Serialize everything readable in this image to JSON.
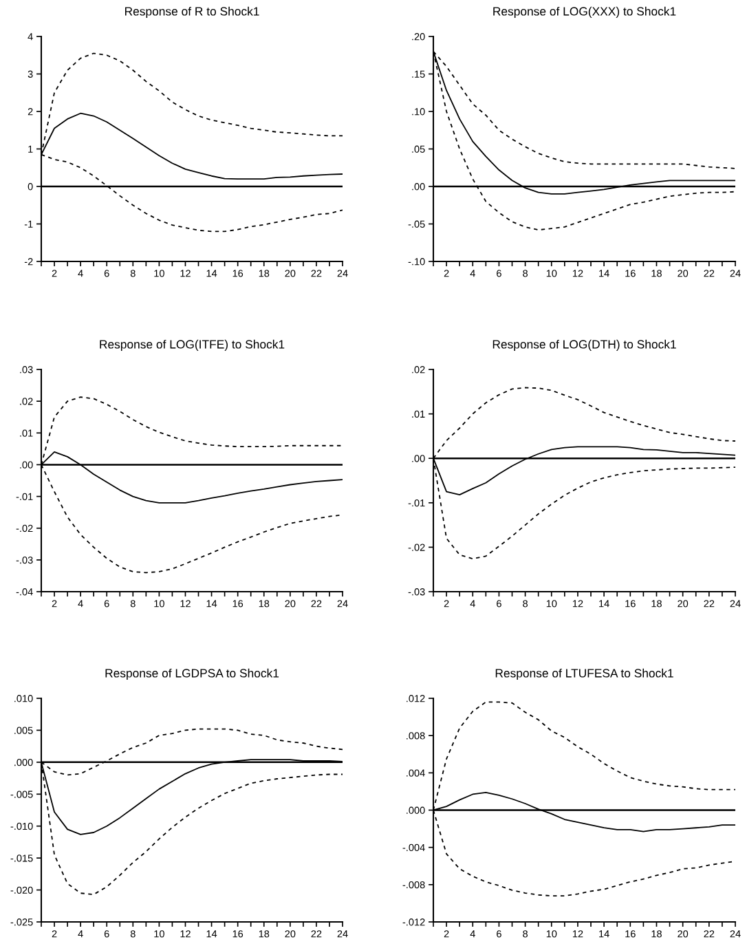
{
  "chart_data": [
    {
      "type": "line",
      "title": "Response of R to Shock1",
      "x": [
        1,
        2,
        3,
        4,
        5,
        6,
        7,
        8,
        9,
        10,
        11,
        12,
        13,
        14,
        15,
        16,
        17,
        18,
        19,
        20,
        21,
        22,
        23,
        24
      ],
      "xlim": [
        1,
        24
      ],
      "xticks": [
        {
          "value": 1,
          "label": null
        },
        2,
        {
          "value": 3,
          "label": null
        },
        4,
        {
          "value": 5,
          "label": null
        },
        6,
        {
          "value": 7,
          "label": null
        },
        8,
        {
          "value": 9,
          "label": null
        },
        10,
        {
          "value": 11,
          "label": null
        },
        12,
        {
          "value": 13,
          "label": null
        },
        14,
        {
          "value": 15,
          "label": null
        },
        16,
        {
          "value": 17,
          "label": null
        },
        18,
        {
          "value": 19,
          "label": null
        },
        20,
        {
          "value": 21,
          "label": null
        },
        22,
        {
          "value": 23,
          "label": null
        },
        24
      ],
      "ylim": [
        -2,
        4
      ],
      "yticks": [
        -2,
        -1,
        0,
        1,
        2,
        3,
        4
      ],
      "ref_lines": [
        {
          "axis": "y",
          "value": 0,
          "color": "#000000"
        }
      ],
      "series": [
        {
          "color": "#000000",
          "line_style": "solid",
          "values": [
            0.85,
            1.55,
            1.8,
            1.95,
            1.88,
            1.72,
            1.5,
            1.28,
            1.05,
            0.82,
            0.62,
            0.46,
            0.37,
            0.28,
            0.21,
            0.2,
            0.2,
            0.2,
            0.24,
            0.25,
            0.28,
            0.3,
            0.32,
            0.33
          ]
        },
        {
          "color": "#000000",
          "line_style": "dashed",
          "values": [
            0.85,
            2.5,
            3.1,
            3.42,
            3.55,
            3.5,
            3.35,
            3.1,
            2.8,
            2.55,
            2.25,
            2.05,
            1.88,
            1.77,
            1.7,
            1.63,
            1.55,
            1.5,
            1.45,
            1.43,
            1.4,
            1.37,
            1.35,
            1.35
          ]
        },
        {
          "color": "#000000",
          "line_style": "dashed",
          "values": [
            0.85,
            0.72,
            0.65,
            0.5,
            0.28,
            0.02,
            -0.25,
            -0.5,
            -0.72,
            -0.9,
            -1.03,
            -1.1,
            -1.17,
            -1.2,
            -1.2,
            -1.15,
            -1.07,
            -1.02,
            -0.95,
            -0.88,
            -0.82,
            -0.75,
            -0.72,
            -0.63
          ]
        }
      ]
    },
    {
      "type": "line",
      "title": "Response of LOG(XXX) to Shock1",
      "x": [
        1,
        2,
        3,
        4,
        5,
        6,
        7,
        8,
        9,
        10,
        11,
        12,
        13,
        14,
        15,
        16,
        17,
        18,
        19,
        20,
        21,
        22,
        23,
        24
      ],
      "xlim": [
        1,
        24
      ],
      "xticks": [
        {
          "value": 1,
          "label": null
        },
        2,
        {
          "value": 3,
          "label": null
        },
        4,
        {
          "value": 5,
          "label": null
        },
        6,
        {
          "value": 7,
          "label": null
        },
        8,
        {
          "value": 9,
          "label": null
        },
        10,
        {
          "value": 11,
          "label": null
        },
        12,
        {
          "value": 13,
          "label": null
        },
        14,
        {
          "value": 15,
          "label": null
        },
        16,
        {
          "value": 17,
          "label": null
        },
        18,
        {
          "value": 19,
          "label": null
        },
        20,
        {
          "value": 21,
          "label": null
        },
        22,
        {
          "value": 23,
          "label": null
        },
        24
      ],
      "ylim": [
        -0.1,
        0.2
      ],
      "yticks": [
        {
          "value": -0.1,
          "label": "-.10"
        },
        {
          "value": -0.05,
          "label": "-.05"
        },
        {
          "value": 0,
          "label": ".00"
        },
        {
          "value": 0.05,
          "label": ".05"
        },
        {
          "value": 0.1,
          "label": ".10"
        },
        {
          "value": 0.15,
          "label": ".15"
        },
        {
          "value": 0.2,
          "label": ".20"
        }
      ],
      "ref_lines": [
        {
          "axis": "y",
          "value": 0,
          "color": "#000000"
        }
      ],
      "series": [
        {
          "color": "#000000",
          "line_style": "solid",
          "values": [
            0.18,
            0.128,
            0.09,
            0.06,
            0.04,
            0.022,
            0.008,
            -0.002,
            -0.008,
            -0.01,
            -0.01,
            -0.008,
            -0.006,
            -0.004,
            -0.001,
            0.002,
            0.004,
            0.006,
            0.008,
            0.008,
            0.008,
            0.008,
            0.008,
            0.008
          ]
        },
        {
          "color": "#000000",
          "line_style": "dashed",
          "values": [
            0.18,
            0.16,
            0.135,
            0.11,
            0.095,
            0.075,
            0.063,
            0.053,
            0.044,
            0.038,
            0.033,
            0.031,
            0.03,
            0.03,
            0.03,
            0.03,
            0.03,
            0.03,
            0.03,
            0.03,
            0.028,
            0.026,
            0.025,
            0.024
          ]
        },
        {
          "color": "#000000",
          "line_style": "dashed",
          "values": [
            0.18,
            0.1,
            0.05,
            0.01,
            -0.02,
            -0.035,
            -0.047,
            -0.054,
            -0.058,
            -0.056,
            -0.054,
            -0.048,
            -0.042,
            -0.036,
            -0.03,
            -0.024,
            -0.021,
            -0.017,
            -0.013,
            -0.011,
            -0.009,
            -0.008,
            -0.008,
            -0.007
          ]
        }
      ]
    },
    {
      "type": "line",
      "title": "Response of LOG(ITFE) to Shock1",
      "x": [
        1,
        2,
        3,
        4,
        5,
        6,
        7,
        8,
        9,
        10,
        11,
        12,
        13,
        14,
        15,
        16,
        17,
        18,
        19,
        20,
        21,
        22,
        23,
        24
      ],
      "xlim": [
        1,
        24
      ],
      "xticks": [
        {
          "value": 1,
          "label": null
        },
        2,
        {
          "value": 3,
          "label": null
        },
        4,
        {
          "value": 5,
          "label": null
        },
        6,
        {
          "value": 7,
          "label": null
        },
        8,
        {
          "value": 9,
          "label": null
        },
        10,
        {
          "value": 11,
          "label": null
        },
        12,
        {
          "value": 13,
          "label": null
        },
        14,
        {
          "value": 15,
          "label": null
        },
        16,
        {
          "value": 17,
          "label": null
        },
        18,
        {
          "value": 19,
          "label": null
        },
        20,
        {
          "value": 21,
          "label": null
        },
        22,
        {
          "value": 23,
          "label": null
        },
        24
      ],
      "ylim": [
        -0.04,
        0.03
      ],
      "yticks": [
        {
          "value": -0.04,
          "label": "-.04"
        },
        {
          "value": -0.03,
          "label": "-.03"
        },
        {
          "value": -0.02,
          "label": "-.02"
        },
        {
          "value": -0.01,
          "label": "-.01"
        },
        {
          "value": 0,
          "label": ".00"
        },
        {
          "value": 0.01,
          "label": ".01"
        },
        {
          "value": 0.02,
          "label": ".02"
        },
        {
          "value": 0.03,
          "label": ".03"
        }
      ],
      "ref_lines": [
        {
          "axis": "y",
          "value": 0,
          "color": "#000000"
        }
      ],
      "series": [
        {
          "color": "#000000",
          "line_style": "solid",
          "values": [
            0,
            0.004,
            0.0025,
            0,
            -0.003,
            -0.0055,
            -0.008,
            -0.01,
            -0.0113,
            -0.012,
            -0.012,
            -0.012,
            -0.0113,
            -0.0105,
            -0.0098,
            -0.009,
            -0.0083,
            -0.0077,
            -0.007,
            -0.0063,
            -0.0058,
            -0.0053,
            -0.005,
            -0.0047
          ]
        },
        {
          "color": "#000000",
          "line_style": "dashed",
          "values": [
            0,
            0.015,
            0.02,
            0.0213,
            0.0208,
            0.019,
            0.0168,
            0.0142,
            0.012,
            0.0102,
            0.0088,
            0.0075,
            0.0068,
            0.0062,
            0.0059,
            0.0057,
            0.0057,
            0.0057,
            0.0058,
            0.006,
            0.006,
            0.006,
            0.006,
            0.006
          ]
        },
        {
          "color": "#000000",
          "line_style": "dashed",
          "values": [
            0,
            -0.0085,
            -0.0165,
            -0.022,
            -0.026,
            -0.0295,
            -0.0322,
            -0.0337,
            -0.034,
            -0.0337,
            -0.0328,
            -0.0312,
            -0.0295,
            -0.0278,
            -0.026,
            -0.0243,
            -0.0228,
            -0.0212,
            -0.0198,
            -0.0185,
            -0.0177,
            -0.017,
            -0.0163,
            -0.0158
          ]
        }
      ]
    },
    {
      "type": "line",
      "title": "Response of LOG(DTH) to Shock1",
      "x": [
        1,
        2,
        3,
        4,
        5,
        6,
        7,
        8,
        9,
        10,
        11,
        12,
        13,
        14,
        15,
        16,
        17,
        18,
        19,
        20,
        21,
        22,
        23,
        24
      ],
      "xlim": [
        1,
        24
      ],
      "xticks": [
        {
          "value": 1,
          "label": null
        },
        2,
        {
          "value": 3,
          "label": null
        },
        4,
        {
          "value": 5,
          "label": null
        },
        6,
        {
          "value": 7,
          "label": null
        },
        8,
        {
          "value": 9,
          "label": null
        },
        10,
        {
          "value": 11,
          "label": null
        },
        12,
        {
          "value": 13,
          "label": null
        },
        14,
        {
          "value": 15,
          "label": null
        },
        16,
        {
          "value": 17,
          "label": null
        },
        18,
        {
          "value": 19,
          "label": null
        },
        20,
        {
          "value": 21,
          "label": null
        },
        22,
        {
          "value": 23,
          "label": null
        },
        24
      ],
      "ylim": [
        -0.03,
        0.02
      ],
      "yticks": [
        {
          "value": -0.03,
          "label": "-.03"
        },
        {
          "value": -0.02,
          "label": "-.02"
        },
        {
          "value": -0.01,
          "label": "-.01"
        },
        {
          "value": 0,
          "label": ".00"
        },
        {
          "value": 0.01,
          "label": ".01"
        },
        {
          "value": 0.02,
          "label": ".02"
        }
      ],
      "ref_lines": [
        {
          "axis": "y",
          "value": 0,
          "color": "#000000"
        }
      ],
      "series": [
        {
          "color": "#000000",
          "line_style": "solid",
          "values": [
            0,
            -0.0075,
            -0.0082,
            -0.0068,
            -0.0055,
            -0.0035,
            -0.0017,
            -0.0002,
            0.001,
            0.002,
            0.0024,
            0.0026,
            0.0026,
            0.0026,
            0.0026,
            0.0024,
            0.002,
            0.0019,
            0.0016,
            0.0013,
            0.0013,
            0.0011,
            0.0009,
            0.0007
          ]
        },
        {
          "color": "#000000",
          "line_style": "dashed",
          "values": [
            0,
            0.004,
            0.0068,
            0.01,
            0.0125,
            0.0143,
            0.0156,
            0.0159,
            0.0158,
            0.0153,
            0.0142,
            0.0132,
            0.0118,
            0.0103,
            0.0093,
            0.0083,
            0.0074,
            0.0066,
            0.0058,
            0.0054,
            0.0049,
            0.0044,
            0.004,
            0.0039
          ]
        },
        {
          "color": "#000000",
          "line_style": "dashed",
          "values": [
            0,
            -0.018,
            -0.0217,
            -0.0226,
            -0.022,
            -0.0198,
            -0.0175,
            -0.015,
            -0.0125,
            -0.0103,
            -0.0083,
            -0.0067,
            -0.0053,
            -0.0044,
            -0.0037,
            -0.0032,
            -0.0028,
            -0.0026,
            -0.0024,
            -0.0023,
            -0.0022,
            -0.0022,
            -0.0021,
            -0.002
          ]
        }
      ]
    },
    {
      "type": "line",
      "title": "Response of LGDPSA to Shock1",
      "x": [
        1,
        2,
        3,
        4,
        5,
        6,
        7,
        8,
        9,
        10,
        11,
        12,
        13,
        14,
        15,
        16,
        17,
        18,
        19,
        20,
        21,
        22,
        23,
        24
      ],
      "xlim": [
        1,
        24
      ],
      "xticks": [
        {
          "value": 1,
          "label": null
        },
        2,
        {
          "value": 3,
          "label": null
        },
        4,
        {
          "value": 5,
          "label": null
        },
        6,
        {
          "value": 7,
          "label": null
        },
        8,
        {
          "value": 9,
          "label": null
        },
        10,
        {
          "value": 11,
          "label": null
        },
        12,
        {
          "value": 13,
          "label": null
        },
        14,
        {
          "value": 15,
          "label": null
        },
        16,
        {
          "value": 17,
          "label": null
        },
        18,
        {
          "value": 19,
          "label": null
        },
        20,
        {
          "value": 21,
          "label": null
        },
        22,
        {
          "value": 23,
          "label": null
        },
        24
      ],
      "ylim": [
        -0.025,
        0.01
      ],
      "yticks": [
        {
          "value": -0.025,
          "label": "-.025"
        },
        {
          "value": -0.02,
          "label": "-.020"
        },
        {
          "value": -0.015,
          "label": "-.015"
        },
        {
          "value": -0.01,
          "label": "-.010"
        },
        {
          "value": -0.005,
          "label": "-.005"
        },
        {
          "value": 0,
          "label": ".000"
        },
        {
          "value": 0.005,
          "label": ".005"
        },
        {
          "value": 0.01,
          "label": ".010"
        }
      ],
      "ref_lines": [
        {
          "axis": "y",
          "value": 0,
          "color": "#000000"
        }
      ],
      "series": [
        {
          "color": "#000000",
          "line_style": "solid",
          "values": [
            0,
            -0.0078,
            -0.0105,
            -0.0113,
            -0.011,
            -0.01,
            -0.0087,
            -0.0072,
            -0.0057,
            -0.0042,
            -0.003,
            -0.0018,
            -0.0009,
            -0.0003,
            0,
            0.0002,
            0.0004,
            0.0004,
            0.0004,
            0.0004,
            0.0002,
            0.0002,
            0.0002,
            0.0001
          ]
        },
        {
          "color": "#000000",
          "line_style": "dashed",
          "values": [
            0,
            -0.0015,
            -0.002,
            -0.0018,
            -0.0008,
            0.0002,
            0.0013,
            0.0023,
            0.003,
            0.0042,
            0.0045,
            0.005,
            0.0052,
            0.0052,
            0.0052,
            0.005,
            0.0044,
            0.0042,
            0.0035,
            0.0032,
            0.003,
            0.0025,
            0.0022,
            0.002
          ]
        },
        {
          "color": "#000000",
          "line_style": "dashed",
          "values": [
            0,
            -0.0145,
            -0.019,
            -0.0205,
            -0.0207,
            -0.0195,
            -0.0177,
            -0.0157,
            -0.014,
            -0.012,
            -0.0102,
            -0.0086,
            -0.0072,
            -0.006,
            -0.0049,
            -0.0041,
            -0.0033,
            -0.0029,
            -0.0026,
            -0.0024,
            -0.0022,
            -0.002,
            -0.0019,
            -0.0019
          ]
        }
      ]
    },
    {
      "type": "line",
      "title": "Response of LTUFESA to Shock1",
      "x": [
        1,
        2,
        3,
        4,
        5,
        6,
        7,
        8,
        9,
        10,
        11,
        12,
        13,
        14,
        15,
        16,
        17,
        18,
        19,
        20,
        21,
        22,
        23,
        24
      ],
      "xlim": [
        1,
        24
      ],
      "xticks": [
        {
          "value": 1,
          "label": null
        },
        2,
        {
          "value": 3,
          "label": null
        },
        4,
        {
          "value": 5,
          "label": null
        },
        6,
        {
          "value": 7,
          "label": null
        },
        8,
        {
          "value": 9,
          "label": null
        },
        10,
        {
          "value": 11,
          "label": null
        },
        12,
        {
          "value": 13,
          "label": null
        },
        14,
        {
          "value": 15,
          "label": null
        },
        16,
        {
          "value": 17,
          "label": null
        },
        18,
        {
          "value": 19,
          "label": null
        },
        20,
        {
          "value": 21,
          "label": null
        },
        22,
        {
          "value": 23,
          "label": null
        },
        24
      ],
      "ylim": [
        -0.012,
        0.012
      ],
      "yticks": [
        {
          "value": -0.012,
          "label": "-.012"
        },
        {
          "value": -0.008,
          "label": "-.008"
        },
        {
          "value": -0.004,
          "label": "-.004"
        },
        {
          "value": 0,
          "label": ".000"
        },
        {
          "value": 0.004,
          "label": ".004"
        },
        {
          "value": 0.008,
          "label": ".008"
        },
        {
          "value": 0.012,
          "label": ".012"
        }
      ],
      "ref_lines": [
        {
          "axis": "y",
          "value": 0,
          "color": "#000000"
        }
      ],
      "series": [
        {
          "color": "#000000",
          "line_style": "solid",
          "values": [
            0,
            0.0004,
            0.0011,
            0.0017,
            0.0019,
            0.0016,
            0.0012,
            0.0007,
            0.0001,
            -0.0004,
            -0.001,
            -0.0013,
            -0.0016,
            -0.0019,
            -0.0021,
            -0.0021,
            -0.0023,
            -0.0021,
            -0.0021,
            -0.002,
            -0.0019,
            -0.0018,
            -0.0016,
            -0.0016
          ]
        },
        {
          "color": "#000000",
          "line_style": "dashed",
          "values": [
            0,
            0.0055,
            0.0088,
            0.0106,
            0.0116,
            0.0116,
            0.0115,
            0.0105,
            0.0097,
            0.0085,
            0.0078,
            0.0068,
            0.006,
            0.005,
            0.0042,
            0.0035,
            0.0031,
            0.0028,
            0.0026,
            0.0025,
            0.0023,
            0.0022,
            0.0022,
            0.0022
          ]
        },
        {
          "color": "#000000",
          "line_style": "dashed",
          "values": [
            0,
            -0.0047,
            -0.0063,
            -0.0071,
            -0.0077,
            -0.0081,
            -0.0086,
            -0.0089,
            -0.0091,
            -0.0092,
            -0.0092,
            -0.009,
            -0.0087,
            -0.0085,
            -0.0081,
            -0.0077,
            -0.0074,
            -0.007,
            -0.0067,
            -0.0063,
            -0.0062,
            -0.0059,
            -0.0057,
            -0.0055
          ]
        }
      ]
    }
  ]
}
